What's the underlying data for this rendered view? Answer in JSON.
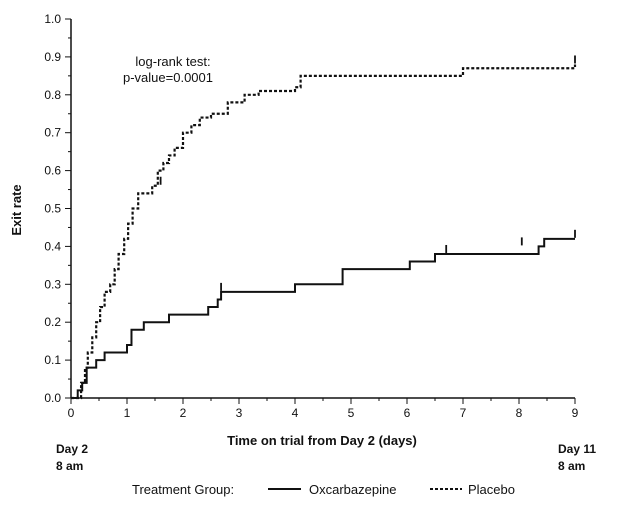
{
  "chart_data": {
    "type": "line",
    "subtype": "step (Kaplan-Meier style)",
    "xlabel": "Time on trial from Day 2 (days)",
    "ylabel": "Exit rate",
    "xlim": [
      0,
      9
    ],
    "ylim": [
      0,
      1.0
    ],
    "x_ticks": [
      "0",
      "1",
      "2",
      "3",
      "4",
      "5",
      "6",
      "7",
      "8",
      "9"
    ],
    "y_ticks": [
      "0.0",
      "0.1",
      "0.2",
      "0.3",
      "0.4",
      "0.5",
      "0.6",
      "0.7",
      "0.8",
      "0.9",
      "1.0"
    ],
    "start_label": [
      "Day 2",
      "8 am"
    ],
    "end_label": [
      "Day 11",
      "8 am"
    ],
    "annotation": [
      "log-rank test:",
      "p-value=0.0001"
    ],
    "legend": {
      "title": "Treatment Group:",
      "position": "bottom"
    },
    "grid": false,
    "series": [
      {
        "name": "Oxcarbazepine",
        "style": "solid",
        "color": "#111111",
        "x": [
          0,
          0.12,
          0.2,
          0.28,
          0.45,
          0.6,
          1.0,
          1.08,
          1.3,
          1.75,
          2.45,
          2.62,
          2.68,
          4.0,
          4.85,
          6.05,
          6.5,
          8.35,
          8.45,
          9.0
        ],
        "y": [
          0,
          0.02,
          0.04,
          0.08,
          0.1,
          0.12,
          0.14,
          0.18,
          0.2,
          0.22,
          0.24,
          0.26,
          0.28,
          0.3,
          0.34,
          0.36,
          0.38,
          0.4,
          0.42,
          0.42
        ],
        "censored": [
          [
            2.68,
            0.28
          ],
          [
            6.7,
            0.38
          ],
          [
            8.05,
            0.4
          ],
          [
            9.0,
            0.42
          ]
        ]
      },
      {
        "name": "Placebo",
        "style": "dashed",
        "color": "#111111",
        "x": [
          0,
          0.18,
          0.25,
          0.3,
          0.38,
          0.45,
          0.52,
          0.6,
          0.7,
          0.78,
          0.85,
          0.95,
          1.02,
          1.1,
          1.2,
          1.3,
          1.45,
          1.55,
          1.65,
          1.75,
          1.85,
          2.0,
          2.15,
          2.3,
          2.5,
          2.65,
          2.8,
          3.1,
          3.35,
          4.0,
          4.1,
          4.5,
          5.0,
          5.2,
          5.55,
          6.0,
          6.5,
          7.0,
          8.5,
          9.0
        ],
        "y": [
          0,
          0.04,
          0.08,
          0.12,
          0.16,
          0.2,
          0.24,
          0.28,
          0.3,
          0.34,
          0.38,
          0.42,
          0.46,
          0.5,
          0.54,
          0.54,
          0.56,
          0.6,
          0.62,
          0.64,
          0.66,
          0.7,
          0.72,
          0.74,
          0.75,
          0.75,
          0.78,
          0.8,
          0.81,
          0.82,
          0.85,
          0.85,
          0.85,
          0.85,
          0.85,
          0.85,
          0.85,
          0.87,
          0.87,
          0.88
        ],
        "censored": [
          [
            1.6,
            0.56
          ],
          [
            9.0,
            0.88
          ]
        ]
      }
    ]
  }
}
